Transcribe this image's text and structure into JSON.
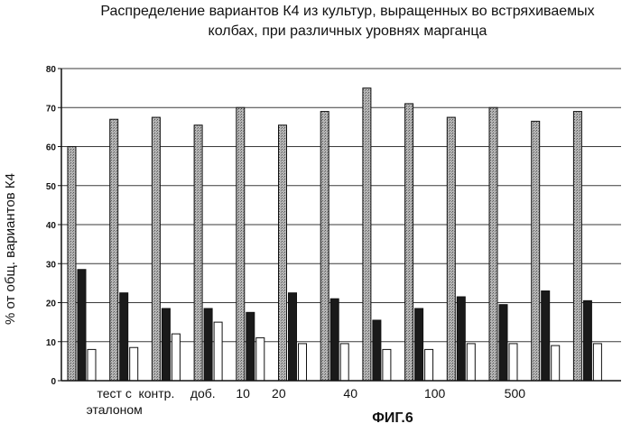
{
  "chart_data": {
    "type": "bar",
    "title": "Распределение вариантов К4 из культур, выращенных во встряхиваемых колбах, при различных уровнях марганца",
    "title_lines": [
      "Распределение вариантов К4 из культур, выращенных во встряхиваемых",
      "колбах, при различных уровнях марганца"
    ],
    "ylabel": "% от общ. вариантов К4",
    "xlabel": "",
    "ylim": [
      0,
      80
    ],
    "yticks": [
      0,
      10,
      20,
      30,
      40,
      50,
      60,
      70,
      80
    ],
    "grid": true,
    "categories": [
      "тест с эталоном",
      "",
      "контр.",
      "доб.",
      "10",
      "20",
      "",
      "40",
      "",
      "100",
      "",
      "500",
      ""
    ],
    "category_labels": [
      {
        "text": "тест с",
        "group": 1.5,
        "line": 0
      },
      {
        "text": "эталоном",
        "group": 1.5,
        "line": 1
      },
      {
        "text": "контр.",
        "group": 2.5,
        "line": 0
      },
      {
        "text": "доб.",
        "group": 3.6,
        "line": 0
      },
      {
        "text": "10",
        "group": 4.55,
        "line": 0
      },
      {
        "text": "20",
        "group": 5.4,
        "line": 0
      },
      {
        "text": "40",
        "group": 7.1,
        "line": 0
      },
      {
        "text": "100",
        "group": 9.1,
        "line": 0
      },
      {
        "text": "500",
        "group": 11.0,
        "line": 0
      }
    ],
    "series": [
      {
        "values": [
          60,
          67,
          67.5,
          65.5,
          70,
          65.5,
          69,
          75,
          71,
          67.5,
          70,
          66.5,
          69
        ],
        "color": "#9c9c9c"
      },
      {
        "values": [
          28.5,
          22.5,
          18.5,
          18.5,
          17.5,
          22.5,
          21,
          15.5,
          18.5,
          21.5,
          19.5,
          23,
          20.5
        ],
        "color": "#1a1a1a"
      },
      {
        "values": [
          8,
          8.5,
          12,
          15,
          11,
          9.5,
          9.5,
          8,
          8,
          9.5,
          9.5,
          9,
          9.5
        ],
        "color": "#ffffff"
      }
    ]
  },
  "figure_caption": "ФИГ.6"
}
